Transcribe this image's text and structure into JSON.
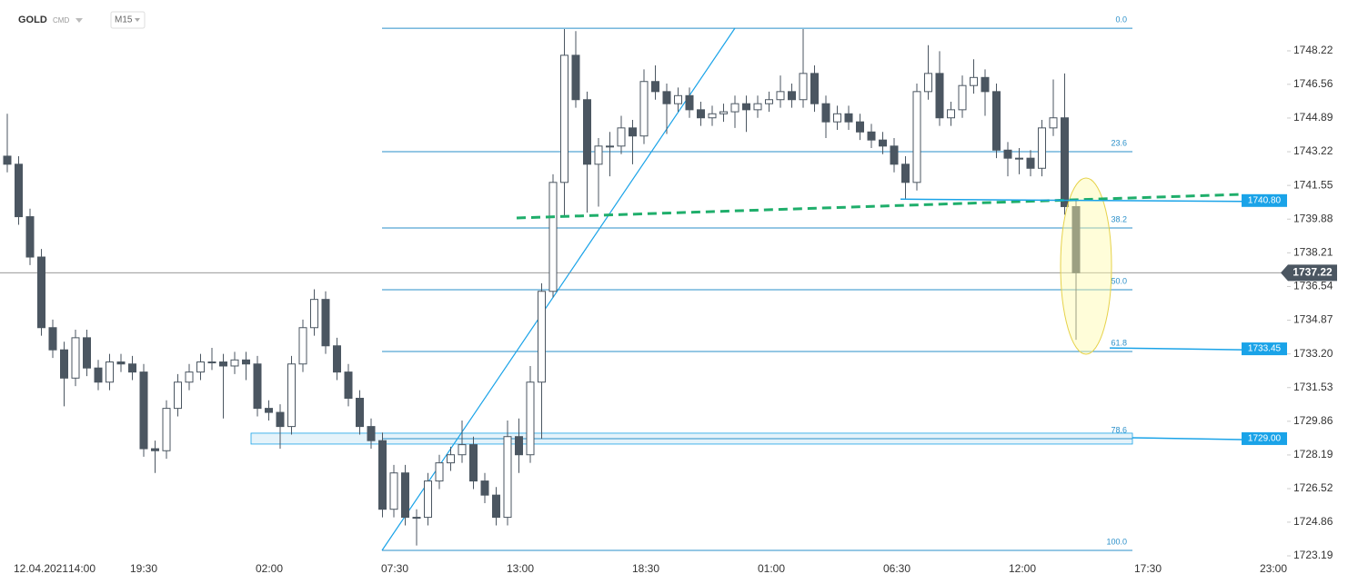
{
  "chart_data": {
    "type": "candlestick",
    "symbol": "GOLD",
    "market": "CMD",
    "timeframe": "M15",
    "x_axis_labels": [
      "12.04.2021",
      "14:00",
      "19:30",
      "02:00",
      "07:30",
      "13:00",
      "18:30",
      "01:00",
      "06:30",
      "12:00",
      "17:30",
      "23:00"
    ],
    "open": [
      1743.0,
      1742.6,
      1740.0,
      1738.0,
      1734.5,
      1733.4,
      1732.0,
      1734.0,
      1732.5,
      1731.8,
      1732.8,
      1732.7,
      1732.3,
      1728.5,
      1728.4,
      1730.5,
      1731.8,
      1732.3,
      1732.8,
      1732.8,
      1732.6,
      1732.9,
      1732.7,
      1730.5,
      1730.3,
      1729.6,
      1732.7,
      1734.5,
      1735.9,
      1733.6,
      1732.3,
      1731.0,
      1729.6,
      1728.9,
      1725.5,
      1727.3,
      1725.1,
      1725.1,
      1726.9,
      1727.8,
      1728.2,
      1728.7,
      1726.9,
      1726.2,
      1725.1,
      1729.1,
      1728.2,
      1731.8,
      1736.3,
      1741.7,
      1748.0,
      1745.8,
      1742.6,
      1743.5,
      1743.5,
      1744.4,
      1744.0,
      1746.7,
      1746.2,
      1745.6,
      1746.0,
      1745.3,
      1744.9,
      1745.1,
      1745.2,
      1745.6,
      1745.3,
      1745.6,
      1745.8,
      1746.2,
      1745.8,
      1747.1,
      1745.6,
      1744.7,
      1745.1,
      1744.7,
      1744.2,
      1743.8,
      1743.5,
      1742.6,
      1741.7,
      1746.2,
      1747.1,
      1744.9,
      1745.3,
      1746.5,
      1746.9,
      1746.2,
      1743.3,
      1742.9,
      1742.9,
      1742.4,
      1744.4,
      1744.9,
      1740.5
    ],
    "high": [
      1745.1,
      1743.0,
      1740.4,
      1738.4,
      1734.9,
      1733.8,
      1734.4,
      1734.4,
      1732.9,
      1733.2,
      1733.2,
      1733.1,
      1732.7,
      1728.9,
      1730.9,
      1732.2,
      1732.7,
      1733.2,
      1733.5,
      1733.2,
      1733.3,
      1733.3,
      1733.1,
      1730.9,
      1730.7,
      1733.1,
      1734.9,
      1736.4,
      1736.3,
      1734.0,
      1732.7,
      1731.4,
      1730.0,
      1729.3,
      1727.7,
      1727.7,
      1725.5,
      1727.3,
      1728.2,
      1728.6,
      1729.9,
      1729.1,
      1727.3,
      1726.6,
      1729.9,
      1730.0,
      1732.6,
      1736.7,
      1742.1,
      1749.3,
      1749.2,
      1746.2,
      1743.9,
      1744.2,
      1745.0,
      1744.8,
      1747.3,
      1747.5,
      1746.6,
      1746.4,
      1746.4,
      1745.7,
      1745.5,
      1745.6,
      1746.0,
      1746.0,
      1746.0,
      1746.2,
      1747.0,
      1746.6,
      1749.3,
      1747.5,
      1746.0,
      1745.5,
      1745.5,
      1745.1,
      1744.6,
      1744.2,
      1743.9,
      1743.0,
      1746.6,
      1748.5,
      1748.2,
      1745.7,
      1747.0,
      1747.8,
      1747.3,
      1746.6,
      1743.7,
      1743.4,
      1743.3,
      1744.8,
      1746.8,
      1747.1,
      1740.9
    ],
    "low": [
      1742.2,
      1739.6,
      1737.6,
      1734.1,
      1733.0,
      1730.6,
      1731.6,
      1732.1,
      1731.4,
      1731.4,
      1732.3,
      1731.9,
      1728.1,
      1727.3,
      1728.0,
      1730.1,
      1731.4,
      1731.9,
      1732.4,
      1730.0,
      1732.2,
      1731.9,
      1730.1,
      1729.9,
      1728.5,
      1729.2,
      1732.3,
      1734.1,
      1733.2,
      1731.9,
      1730.6,
      1729.2,
      1728.5,
      1725.1,
      1725.1,
      1724.7,
      1723.7,
      1724.7,
      1726.5,
      1727.4,
      1727.8,
      1726.5,
      1725.8,
      1724.7,
      1724.7,
      1727.3,
      1727.8,
      1729.0,
      1736.0,
      1740.0,
      1745.4,
      1740.2,
      1740.5,
      1742.0,
      1743.1,
      1742.6,
      1743.6,
      1745.8,
      1744.1,
      1745.2,
      1744.9,
      1744.5,
      1744.5,
      1744.7,
      1744.4,
      1744.2,
      1744.9,
      1745.2,
      1745.4,
      1745.4,
      1745.4,
      1745.2,
      1743.9,
      1744.3,
      1744.3,
      1743.8,
      1743.4,
      1743.1,
      1742.2,
      1740.9,
      1741.3,
      1745.8,
      1744.5,
      1744.5,
      1744.9,
      1746.1,
      1745.0,
      1742.9,
      1742.0,
      1742.1,
      1742.0,
      1742.0,
      1744.0,
      1740.1,
      1733.9
    ],
    "close": [
      1742.6,
      1740.0,
      1738.0,
      1734.5,
      1733.4,
      1732.0,
      1734.0,
      1732.5,
      1731.8,
      1732.8,
      1732.7,
      1732.3,
      1728.5,
      1728.4,
      1730.5,
      1731.8,
      1732.3,
      1732.8,
      1732.8,
      1732.6,
      1732.9,
      1732.7,
      1730.5,
      1730.3,
      1729.6,
      1732.7,
      1734.5,
      1735.9,
      1733.6,
      1732.3,
      1731.0,
      1729.6,
      1728.9,
      1725.5,
      1727.3,
      1725.1,
      1725.1,
      1726.9,
      1727.8,
      1728.2,
      1728.7,
      1726.9,
      1726.2,
      1725.1,
      1729.1,
      1728.2,
      1731.8,
      1736.3,
      1741.7,
      1748.0,
      1745.8,
      1742.6,
      1743.5,
      1743.5,
      1744.4,
      1744.0,
      1746.7,
      1746.2,
      1745.6,
      1746.0,
      1745.3,
      1744.9,
      1745.1,
      1745.2,
      1745.6,
      1745.3,
      1745.6,
      1745.8,
      1746.2,
      1745.8,
      1747.1,
      1745.6,
      1744.7,
      1745.1,
      1744.7,
      1744.2,
      1743.8,
      1743.5,
      1742.6,
      1741.7,
      1746.2,
      1747.1,
      1744.9,
      1745.3,
      1746.5,
      1746.9,
      1746.2,
      1743.3,
      1742.9,
      1742.9,
      1742.4,
      1744.4,
      1744.9,
      1740.5,
      1737.22
    ],
    "ylim": [
      1722.83,
      1750.74
    ],
    "yticks": [
      1748.22,
      1746.56,
      1744.89,
      1743.22,
      1741.55,
      1739.88,
      1738.21,
      1736.54,
      1734.87,
      {
        "value": 1733.2,
        "label": "1733.20"
      },
      1731.53,
      1729.86,
      1728.19,
      1726.52,
      1724.86,
      1723.19
    ],
    "fibonacci": {
      "levels": [
        {
          "value": 0,
          "label": "0.0"
        },
        23.6,
        38.2,
        {
          "value": 50,
          "label": "50.0"
        },
        61.8,
        78.6,
        {
          "value": 100,
          "label": "100.0"
        }
      ],
      "prices": [
        1749.34,
        1743.22,
        1739.44,
        1736.38,
        1733.32,
        1729.0,
        1723.46
      ]
    },
    "levels": [
      {
        "value": 1740.8,
        "label": "1740.80"
      },
      1733.45,
      {
        "value": 1729,
        "label": "1729.00"
      }
    ],
    "last_price": 1737.22,
    "colors": {
      "up": "#ffffff",
      "down": "#4b5661",
      "outline": "#4b5661",
      "fib": "#2a8fc9",
      "level": "#1aa3e8"
    }
  }
}
